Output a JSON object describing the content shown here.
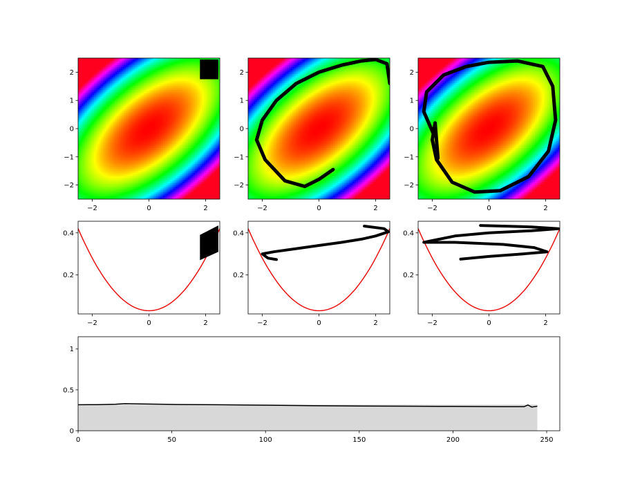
{
  "figure": {
    "background": "#ffffff",
    "colors": {
      "curve": "#e8110f",
      "points": "#000000",
      "area_fill": "#d8d8d8",
      "line": "#000000"
    },
    "colormap": "hsv"
  },
  "chart_data": [
    {
      "id": "heatmap-1",
      "type": "heatmap",
      "colormap": "hsv",
      "field": "gaussian-energy",
      "xlim": [
        -2.5,
        2.5
      ],
      "ylim": [
        -2.5,
        2.5
      ],
      "xticks": [
        -2,
        0,
        2
      ],
      "yticks": [
        -2,
        -1,
        0,
        1,
        2
      ],
      "overlay": {
        "type": "filled-square",
        "x": [
          1.8,
          2.45
        ],
        "y": [
          1.75,
          2.45
        ]
      }
    },
    {
      "id": "heatmap-2",
      "type": "heatmap",
      "colormap": "hsv",
      "field": "gaussian-energy",
      "xlim": [
        -2.5,
        2.5
      ],
      "ylim": [
        -2.5,
        2.5
      ],
      "xticks": [
        -2,
        0,
        2
      ],
      "yticks": [
        -2,
        -1,
        0,
        1,
        2
      ],
      "overlay": {
        "type": "curve",
        "x": [
          0.5,
          0.0,
          -0.5,
          -1.2,
          -1.9,
          -2.2,
          -2.0,
          -1.5,
          -0.8,
          0.0,
          0.8,
          1.5,
          2.0,
          2.4,
          2.5
        ],
        "y": [
          -1.45,
          -1.8,
          -2.05,
          -1.85,
          -1.1,
          -0.4,
          0.3,
          1.0,
          1.6,
          2.0,
          2.25,
          2.4,
          2.45,
          2.3,
          1.6
        ]
      }
    },
    {
      "id": "heatmap-3",
      "type": "heatmap",
      "colormap": "hsv",
      "field": "gaussian-energy",
      "xlim": [
        -2.5,
        2.5
      ],
      "ylim": [
        -2.5,
        2.5
      ],
      "xticks": [
        -2,
        0,
        2
      ],
      "yticks": [
        -2,
        -1,
        0,
        1,
        2
      ],
      "overlay": {
        "type": "curve",
        "x": [
          -1.95,
          -2.3,
          -2.2,
          -1.6,
          -0.8,
          0.0,
          1.0,
          1.9,
          2.25,
          2.35,
          2.1,
          1.4,
          0.4,
          -0.5,
          -1.3,
          -1.85,
          -2.0,
          -1.9,
          -1.8
        ],
        "y": [
          -0.2,
          0.6,
          1.3,
          1.9,
          2.2,
          2.35,
          2.4,
          2.2,
          1.5,
          0.3,
          -0.8,
          -1.7,
          -2.2,
          -2.25,
          -1.9,
          -1.1,
          -0.4,
          0.2,
          -1.05
        ]
      }
    },
    {
      "id": "line-1",
      "type": "scatter",
      "xlim": [
        -2.5,
        2.5
      ],
      "ylim": [
        0.015,
        0.455
      ],
      "xticks": [
        -2,
        0,
        2
      ],
      "yticks": [
        0.2,
        0.4
      ],
      "curve": "parabola",
      "points_region": {
        "x": [
          1.8,
          2.45
        ],
        "y_low": [
          0.27,
          0.31
        ],
        "y_high": [
          0.39,
          0.435
        ]
      }
    },
    {
      "id": "line-2",
      "type": "scatter",
      "xlim": [
        -2.5,
        2.5
      ],
      "ylim": [
        0.015,
        0.455
      ],
      "xticks": [
        -2,
        0,
        2
      ],
      "yticks": [
        0.2,
        0.4
      ],
      "curve": "parabola",
      "points": {
        "x": [
          -1.5,
          -1.8,
          -2.0,
          -1.6,
          -0.8,
          0.0,
          0.8,
          1.5,
          2.0,
          2.45,
          2.3,
          1.6
        ],
        "y": [
          0.273,
          0.28,
          0.3,
          0.31,
          0.325,
          0.34,
          0.355,
          0.37,
          0.385,
          0.405,
          0.42,
          0.432
        ]
      }
    },
    {
      "id": "line-3",
      "type": "scatter",
      "xlim": [
        -2.5,
        2.5
      ],
      "ylim": [
        0.015,
        0.455
      ],
      "xticks": [
        -2,
        0,
        2
      ],
      "yticks": [
        0.2,
        0.4
      ],
      "curve": "parabola",
      "points": {
        "x": [
          -0.3,
          0.5,
          1.5,
          2.45,
          1.5,
          0.0,
          -1.2,
          -2.3,
          -1.2,
          0.5,
          1.6,
          2.05,
          1.2,
          0.0,
          -1.0
        ],
        "y": [
          0.435,
          0.432,
          0.428,
          0.42,
          0.41,
          0.4,
          0.385,
          0.355,
          0.355,
          0.345,
          0.33,
          0.31,
          0.3,
          0.288,
          0.275
        ]
      }
    },
    {
      "id": "area-1",
      "type": "area",
      "xlim": [
        0,
        257
      ],
      "ylim": [
        0,
        1.15
      ],
      "xticks": [
        0,
        50,
        100,
        150,
        200,
        250
      ],
      "yticks": [
        0.0,
        0.5,
        1.0
      ],
      "area": {
        "x_end": 245,
        "level": 0.32
      },
      "line": {
        "x": [
          0,
          10,
          20,
          25,
          35,
          50,
          75,
          100,
          125,
          150,
          175,
          200,
          225,
          238,
          240,
          242,
          245
        ],
        "y": [
          0.318,
          0.32,
          0.325,
          0.332,
          0.328,
          0.322,
          0.318,
          0.313,
          0.307,
          0.303,
          0.3,
          0.298,
          0.295,
          0.295,
          0.315,
          0.29,
          0.3
        ]
      }
    }
  ]
}
